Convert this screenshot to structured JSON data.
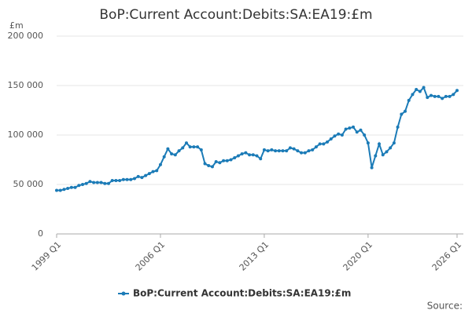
{
  "chart_data": {
    "type": "line",
    "title": "BoP:Current Account:Debits:SA:EA19:£m",
    "y_unit": "£m",
    "source": "Source:",
    "categories": [
      "1999 Q1",
      null,
      null,
      null,
      null,
      null,
      null,
      null,
      null,
      null,
      null,
      null,
      null,
      null,
      null,
      null,
      null,
      null,
      null,
      null,
      null,
      null,
      null,
      null,
      null,
      null,
      null,
      null,
      "2006 Q1",
      null,
      null,
      null,
      null,
      null,
      null,
      null,
      null,
      null,
      null,
      null,
      null,
      null,
      null,
      null,
      null,
      null,
      null,
      null,
      null,
      null,
      null,
      null,
      null,
      null,
      null,
      null,
      "2013 Q1",
      null,
      null,
      null,
      null,
      null,
      null,
      null,
      null,
      null,
      null,
      null,
      null,
      null,
      null,
      null,
      null,
      null,
      null,
      null,
      null,
      null,
      null,
      null,
      null,
      null,
      null,
      null,
      "2020 Q1",
      null,
      null,
      null,
      null,
      null,
      null,
      null,
      null,
      null,
      null,
      null,
      null,
      null,
      null,
      null,
      null,
      null,
      null,
      null,
      null,
      null,
      null,
      null,
      "2026 Q1"
    ],
    "series": [
      {
        "name": "BoP:Current Account:Debits:SA:EA19:£m",
        "color": "#1b7bb7",
        "values": [
          44,
          44,
          45,
          46,
          47,
          47,
          49,
          50,
          51,
          53,
          52,
          52,
          52,
          51,
          51,
          54,
          54,
          54,
          55,
          55,
          55,
          56,
          58,
          57,
          59,
          61,
          63,
          64,
          70,
          78,
          86,
          81,
          80,
          84,
          87,
          92,
          88,
          88,
          88,
          85,
          71,
          69,
          68,
          73,
          72,
          74,
          74,
          75,
          77,
          79,
          81,
          82,
          80,
          80,
          79,
          76,
          85,
          84,
          85,
          84,
          84,
          84,
          84,
          87,
          86,
          84,
          82,
          82,
          84,
          85,
          88,
          91,
          91,
          93,
          96,
          99,
          101,
          100,
          106,
          107,
          108,
          103,
          105,
          100,
          92,
          67,
          79,
          91,
          80,
          83,
          87,
          92,
          108,
          121,
          124,
          135,
          141,
          146,
          144,
          148,
          138,
          140,
          139,
          139,
          137,
          139,
          139,
          141,
          145
        ]
      }
    ],
    "ylim": [
      0,
      200000
    ],
    "value_scale": 1000,
    "yticks": [
      0,
      {
        "value": 50000,
        "label": "50 000"
      },
      {
        "value": 100000,
        "label": "100 000"
      },
      {
        "value": 150000,
        "label": "150 000"
      },
      {
        "value": 200000,
        "label": "200 000"
      }
    ],
    "grid": true,
    "legend": "bottom"
  }
}
